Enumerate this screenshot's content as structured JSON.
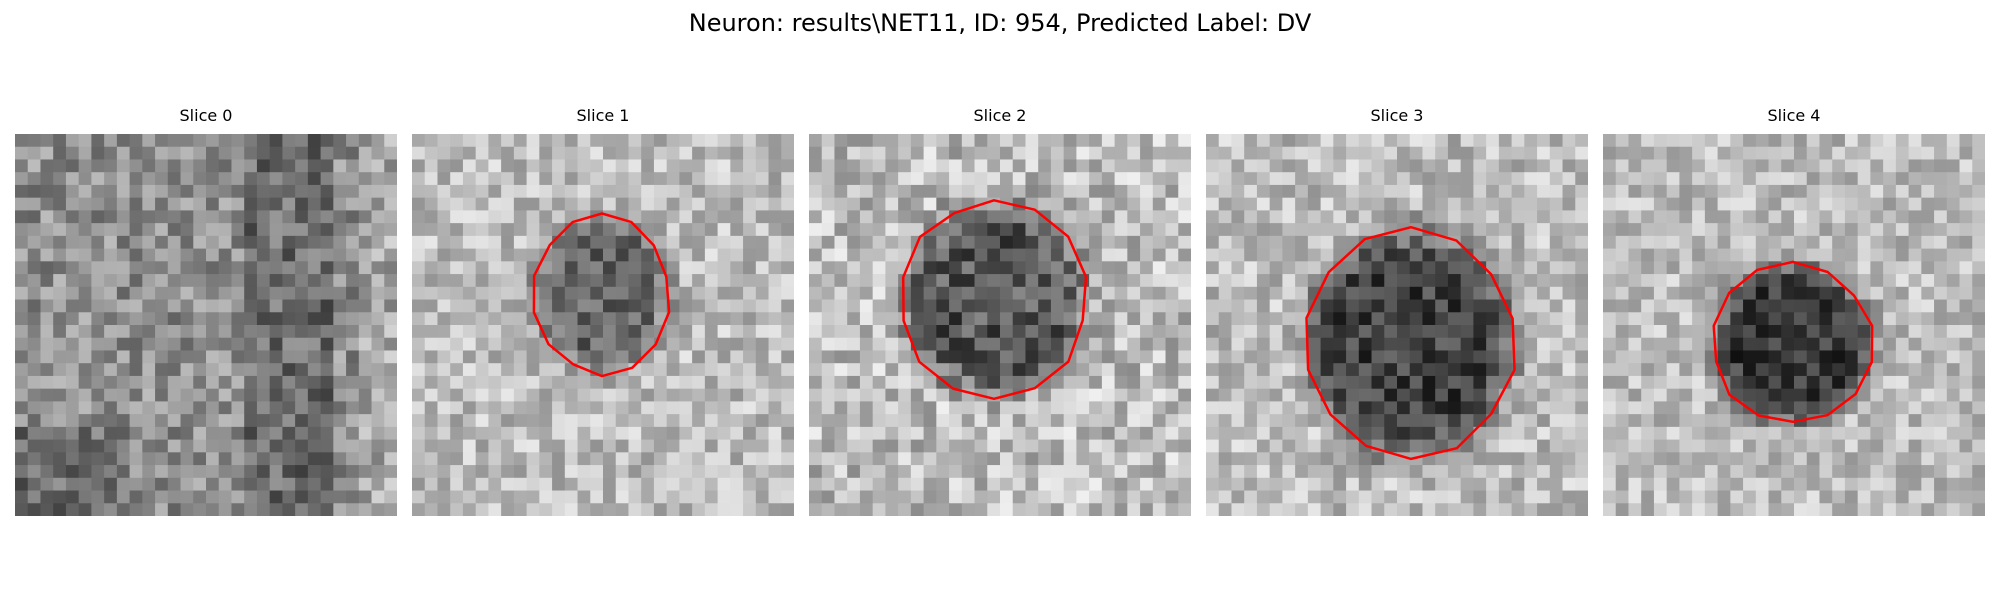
{
  "figure": {
    "title": "Neuron: results\\NET11, ID: 954, Predicted Label: DV"
  },
  "slices": [
    {
      "title": "Slice 0",
      "has_contour": false,
      "dark_region": "none"
    },
    {
      "title": "Slice 1",
      "has_contour": true,
      "dark_region": "center"
    },
    {
      "title": "Slice 2",
      "has_contour": true,
      "dark_region": "center"
    },
    {
      "title": "Slice 3",
      "has_contour": true,
      "dark_region": "center"
    },
    {
      "title": "Slice 4",
      "has_contour": true,
      "dark_region": "center"
    }
  ],
  "colors": {
    "contour": "#ff0000",
    "background": "#ffffff"
  },
  "image": {
    "colormap": "grayscale",
    "grid_cells": 30
  }
}
